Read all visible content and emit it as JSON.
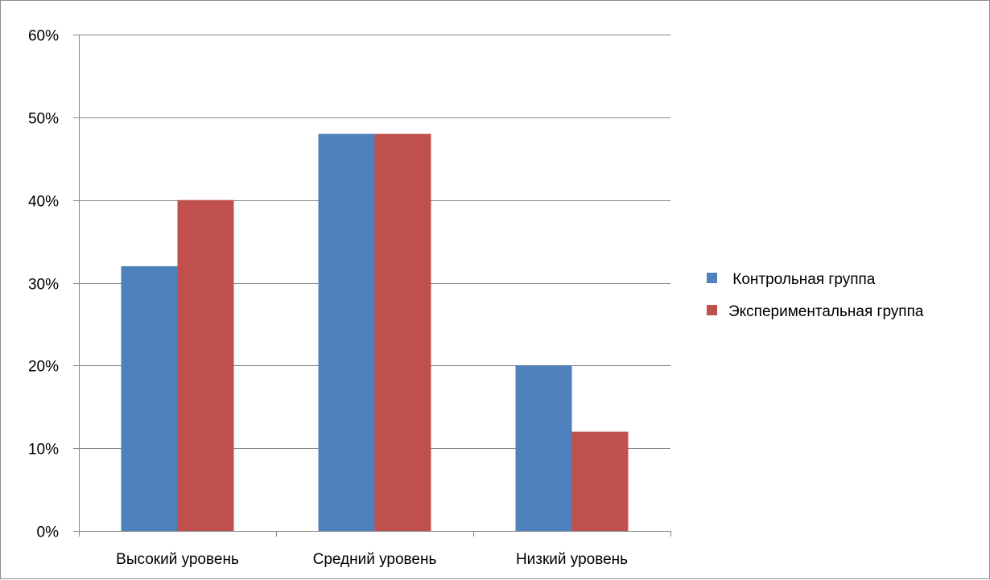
{
  "chart_data": {
    "type": "bar",
    "title": "",
    "xlabel": "",
    "ylabel": "",
    "categories": [
      "Высокий уровень",
      "Средний уровень",
      "Низкий уровень"
    ],
    "series": [
      {
        "name": " Контрольная группа",
        "values": [
          0.32,
          0.48,
          0.2
        ],
        "color": "#4f81bd"
      },
      {
        "name": "Экспериментальная группа",
        "values": [
          0.4,
          0.48,
          0.12
        ],
        "color": "#c0504d"
      }
    ],
    "ylim": [
      0,
      0.6
    ],
    "yticks": [
      0,
      0.1,
      0.2,
      0.3,
      0.4,
      0.5,
      0.6
    ],
    "ytick_labels": [
      "0%",
      "10%",
      "20%",
      "30%",
      "40%",
      "50%",
      "60%"
    ],
    "grid": true,
    "legend_position": "right",
    "colors": {
      "gridline": "#868686",
      "axis": "#868686",
      "border": "#8c8c8c"
    }
  }
}
